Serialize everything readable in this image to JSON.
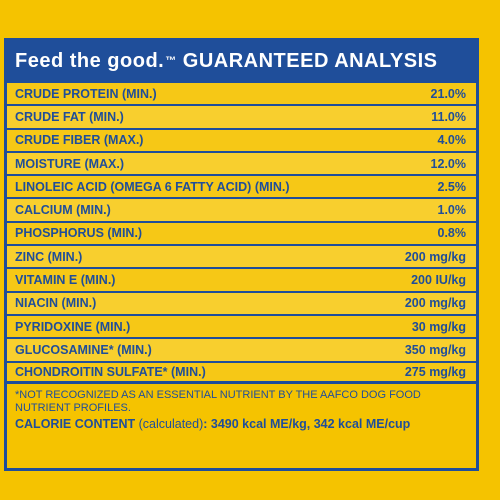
{
  "header": {
    "brand": "Feed the good.",
    "tm": "TM",
    "title": "GUARANTEED ANALYSIS"
  },
  "rows": [
    {
      "label": "CRUDE PROTEIN (MIN.)",
      "value": "21.0%"
    },
    {
      "label": "CRUDE FAT (MIN.)",
      "value": "11.0%"
    },
    {
      "label": "CRUDE FIBER (MAX.)",
      "value": "4.0%"
    },
    {
      "label": "MOISTURE (MAX.)",
      "value": "12.0%"
    },
    {
      "label": "LINOLEIC ACID (OMEGA 6 FATTY ACID) (MIN.)",
      "value": "2.5%"
    },
    {
      "label": "CALCIUM (MIN.)",
      "value": "1.0%"
    },
    {
      "label": "PHOSPHORUS (MIN.)",
      "value": "0.8%"
    },
    {
      "label": "ZINC (MIN.)",
      "value": "200 mg/kg"
    },
    {
      "label": "VITAMIN E (MIN.)",
      "value": "200 IU/kg"
    },
    {
      "label": "NIACIN (MIN.)",
      "value": "200 mg/kg"
    },
    {
      "label": "PYRIDOXINE (MIN.)",
      "value": "30 mg/kg"
    },
    {
      "label": "GLUCOSAMINE* (MIN.)",
      "value": "350 mg/kg"
    },
    {
      "label": "CHONDROITIN SULFATE* (MIN.)",
      "value": "275 mg/kg"
    }
  ],
  "footnote": "*NOT RECOGNIZED AS AN ESSENTIAL NUTRIENT BY THE AAFCO DOG FOOD NUTRIENT PROFILES.",
  "calorie": {
    "label": "CALORIE CONTENT",
    "calc": "(calculated)",
    "value": ": 3490 kcal ME/kg, 342 kcal ME/cup"
  },
  "colors": {
    "background": "#F5C300",
    "accent_blue": "#1F4E9A",
    "header_text": "#FFFFFF"
  }
}
